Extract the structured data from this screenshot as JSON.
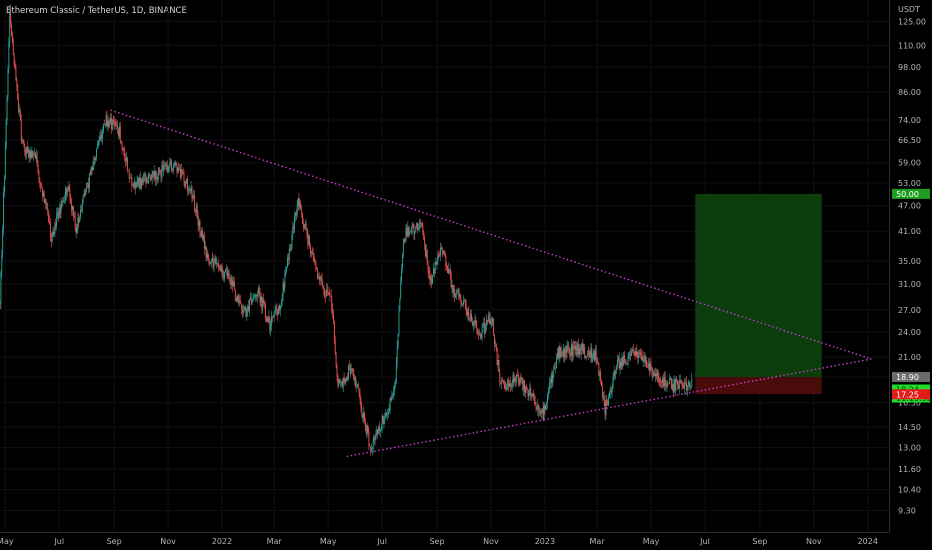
{
  "header": {
    "title": "Ethereum Classic / TetherUS, 1D, BINANCE"
  },
  "axis": {
    "currency": "USDT"
  },
  "colors": {
    "up": "#26a69a",
    "down": "#ef5350",
    "target_zone": "#0c3d0c",
    "stop_zone": "#4a0b0b",
    "trendline": "#d641d6",
    "price_tag": "#1fe027",
    "target_tag": "#1e9e1e",
    "stop_tag": "#e31b1b",
    "last_tag": "#6b6b6b"
  },
  "chart_data": {
    "type": "candlestick",
    "symbol": "ETCUSDT",
    "interval": "1D",
    "exchange": "BINANCE",
    "y_scale": "log",
    "ylim": [
      8.3,
      140
    ],
    "x_range": [
      "2021-04-25",
      "2024-01-25"
    ],
    "y_ticks": [
      "125.00",
      "110.00",
      "98.00",
      "86.00",
      "74.00",
      "66.50",
      "59.00",
      "53.00",
      "47.00",
      "41.00",
      "35.00",
      "31.00",
      "27.00",
      "24.00",
      "21.00",
      "18.90",
      "16.50",
      "14.50",
      "13.00",
      "11.60",
      "10.40",
      "9.30"
    ],
    "x_ticks": [
      {
        "label": "May",
        "date": "2021-05-01"
      },
      {
        "label": "Jul",
        "date": "2021-07-01"
      },
      {
        "label": "Sep",
        "date": "2021-09-01"
      },
      {
        "label": "Nov",
        "date": "2021-11-01"
      },
      {
        "label": "2022",
        "date": "2022-01-01"
      },
      {
        "label": "Mar",
        "date": "2022-03-01"
      },
      {
        "label": "May",
        "date": "2022-05-01"
      },
      {
        "label": "Jul",
        "date": "2022-07-01"
      },
      {
        "label": "Sep",
        "date": "2022-09-01"
      },
      {
        "label": "Nov",
        "date": "2022-11-01"
      },
      {
        "label": "2023",
        "date": "2023-01-01"
      },
      {
        "label": "Mar",
        "date": "2023-03-01"
      },
      {
        "label": "May",
        "date": "2023-05-01"
      },
      {
        "label": "Jul",
        "date": "2023-07-01"
      },
      {
        "label": "Sep",
        "date": "2023-09-01"
      },
      {
        "label": "Nov",
        "date": "2023-11-01"
      },
      {
        "label": "2024",
        "date": "2024-01-01"
      }
    ],
    "price_path": [
      [
        "2021-04-25",
        28
      ],
      [
        "2021-05-06",
        130
      ],
      [
        "2021-05-20",
        65
      ],
      [
        "2021-06-05",
        60
      ],
      [
        "2021-06-22",
        40
      ],
      [
        "2021-07-10",
        52
      ],
      [
        "2021-07-20",
        42
      ],
      [
        "2021-08-22",
        74
      ],
      [
        "2021-09-07",
        70
      ],
      [
        "2021-09-22",
        52
      ],
      [
        "2021-10-10",
        54
      ],
      [
        "2021-11-08",
        59
      ],
      [
        "2021-11-28",
        50
      ],
      [
        "2021-12-15",
        36
      ],
      [
        "2022-01-10",
        32
      ],
      [
        "2022-01-25",
        26
      ],
      [
        "2022-02-10",
        30
      ],
      [
        "2022-02-24",
        25
      ],
      [
        "2022-03-08",
        28
      ],
      [
        "2022-03-28",
        48
      ],
      [
        "2022-04-20",
        32
      ],
      [
        "2022-05-05",
        28
      ],
      [
        "2022-05-12",
        18
      ],
      [
        "2022-05-28",
        20
      ],
      [
        "2022-06-18",
        13
      ],
      [
        "2022-07-01",
        15
      ],
      [
        "2022-07-15",
        17.5
      ],
      [
        "2022-07-25",
        40
      ],
      [
        "2022-08-14",
        43
      ],
      [
        "2022-08-25",
        31
      ],
      [
        "2022-09-06",
        38
      ],
      [
        "2022-09-20",
        30
      ],
      [
        "2022-10-20",
        24
      ],
      [
        "2022-11-02",
        26
      ],
      [
        "2022-11-12",
        18
      ],
      [
        "2022-12-01",
        19
      ],
      [
        "2022-12-30",
        15.5
      ],
      [
        "2023-01-16",
        21.5
      ],
      [
        "2023-02-08",
        22
      ],
      [
        "2023-02-28",
        21
      ],
      [
        "2023-03-10",
        16
      ],
      [
        "2023-03-25",
        20.5
      ],
      [
        "2023-04-18",
        21.5
      ],
      [
        "2023-05-08",
        19
      ],
      [
        "2023-05-28",
        18
      ],
      [
        "2023-06-10",
        17.8
      ],
      [
        "2023-06-16",
        18.24
      ]
    ],
    "trendlines": [
      {
        "from": {
          "date": "2021-08-28",
          "price": 78
        },
        "to": {
          "date": "2024-01-05",
          "price": 20.8
        }
      },
      {
        "from": {
          "date": "2022-05-22",
          "price": 12.4
        },
        "to": {
          "date": "2024-01-05",
          "price": 20.8
        }
      }
    ],
    "position": {
      "entry": 18.9,
      "target": 50.0,
      "stop": 17.25,
      "start_date": "2023-06-20",
      "end_date": "2023-11-10"
    },
    "price_labels": {
      "target": "50.00",
      "last": "18.90",
      "current": "18.24",
      "countdown": "11:15:32",
      "stop": "17.25"
    }
  }
}
